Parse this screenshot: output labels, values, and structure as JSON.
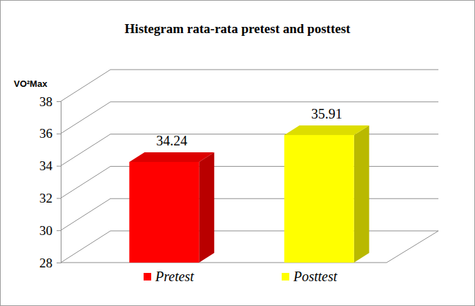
{
  "chart_data": {
    "type": "bar",
    "title": "Histegram rata-rata pretest and posttest",
    "y_label": "VO²Max",
    "categories": [
      null
    ],
    "series": [
      {
        "name": "Pretest",
        "color": "#ff0000",
        "values": [
          34.24
        ]
      },
      {
        "name": "Posttest",
        "color": "#ffff00",
        "values": [
          35.91
        ]
      }
    ],
    "ylim": [
      28,
      38
    ],
    "yticks": [
      28,
      30,
      32,
      34,
      36,
      38
    ],
    "grid": true,
    "data_labels": true,
    "legend": "bottom",
    "tick_labels": "y"
  }
}
